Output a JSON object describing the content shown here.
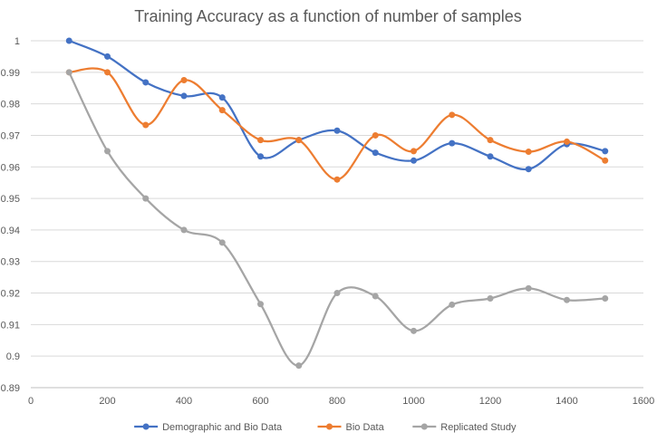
{
  "chart_data": {
    "type": "line",
    "title": "Training Accuracy as a function of number of samples",
    "xlabel": "",
    "ylabel": "",
    "xlim": [
      0,
      1600
    ],
    "ylim": [
      0.89,
      1
    ],
    "x_ticks": [
      "0",
      "200",
      "400",
      "600",
      "800",
      "1000",
      "1200",
      "1400",
      "1600"
    ],
    "y_ticks": [
      "0.89",
      "0.9",
      "0.91",
      "0.92",
      "0.93",
      "0.94",
      "0.95",
      "0.96",
      "0.97",
      "0.98",
      "0.99",
      "1"
    ],
    "grid": true,
    "smoothed": true,
    "legend_position": "bottom",
    "x": [
      100,
      200,
      300,
      400,
      500,
      600,
      700,
      800,
      900,
      1000,
      1100,
      1200,
      1300,
      1400,
      1500
    ],
    "series": [
      {
        "name": "Demographic and Bio Data",
        "color": "#4472C4",
        "values": [
          1.0,
          0.995,
          0.9868,
          0.9825,
          0.982,
          0.9633,
          0.9685,
          0.9715,
          0.9645,
          0.962,
          0.9675,
          0.9633,
          0.9593,
          0.9672,
          0.965
        ]
      },
      {
        "name": "Bio Data",
        "color": "#ED7D31",
        "values": [
          0.99,
          0.99,
          0.9733,
          0.9875,
          0.978,
          0.9685,
          0.9685,
          0.956,
          0.97,
          0.965,
          0.9765,
          0.9685,
          0.9648,
          0.968,
          0.962
        ]
      },
      {
        "name": "Replicated Study",
        "color": "#A5A5A5",
        "values": [
          0.99,
          0.965,
          0.95,
          0.94,
          0.936,
          0.9165,
          0.897,
          0.92,
          0.919,
          0.908,
          0.9163,
          0.9183,
          0.9215,
          0.9178,
          0.9183
        ]
      }
    ]
  }
}
